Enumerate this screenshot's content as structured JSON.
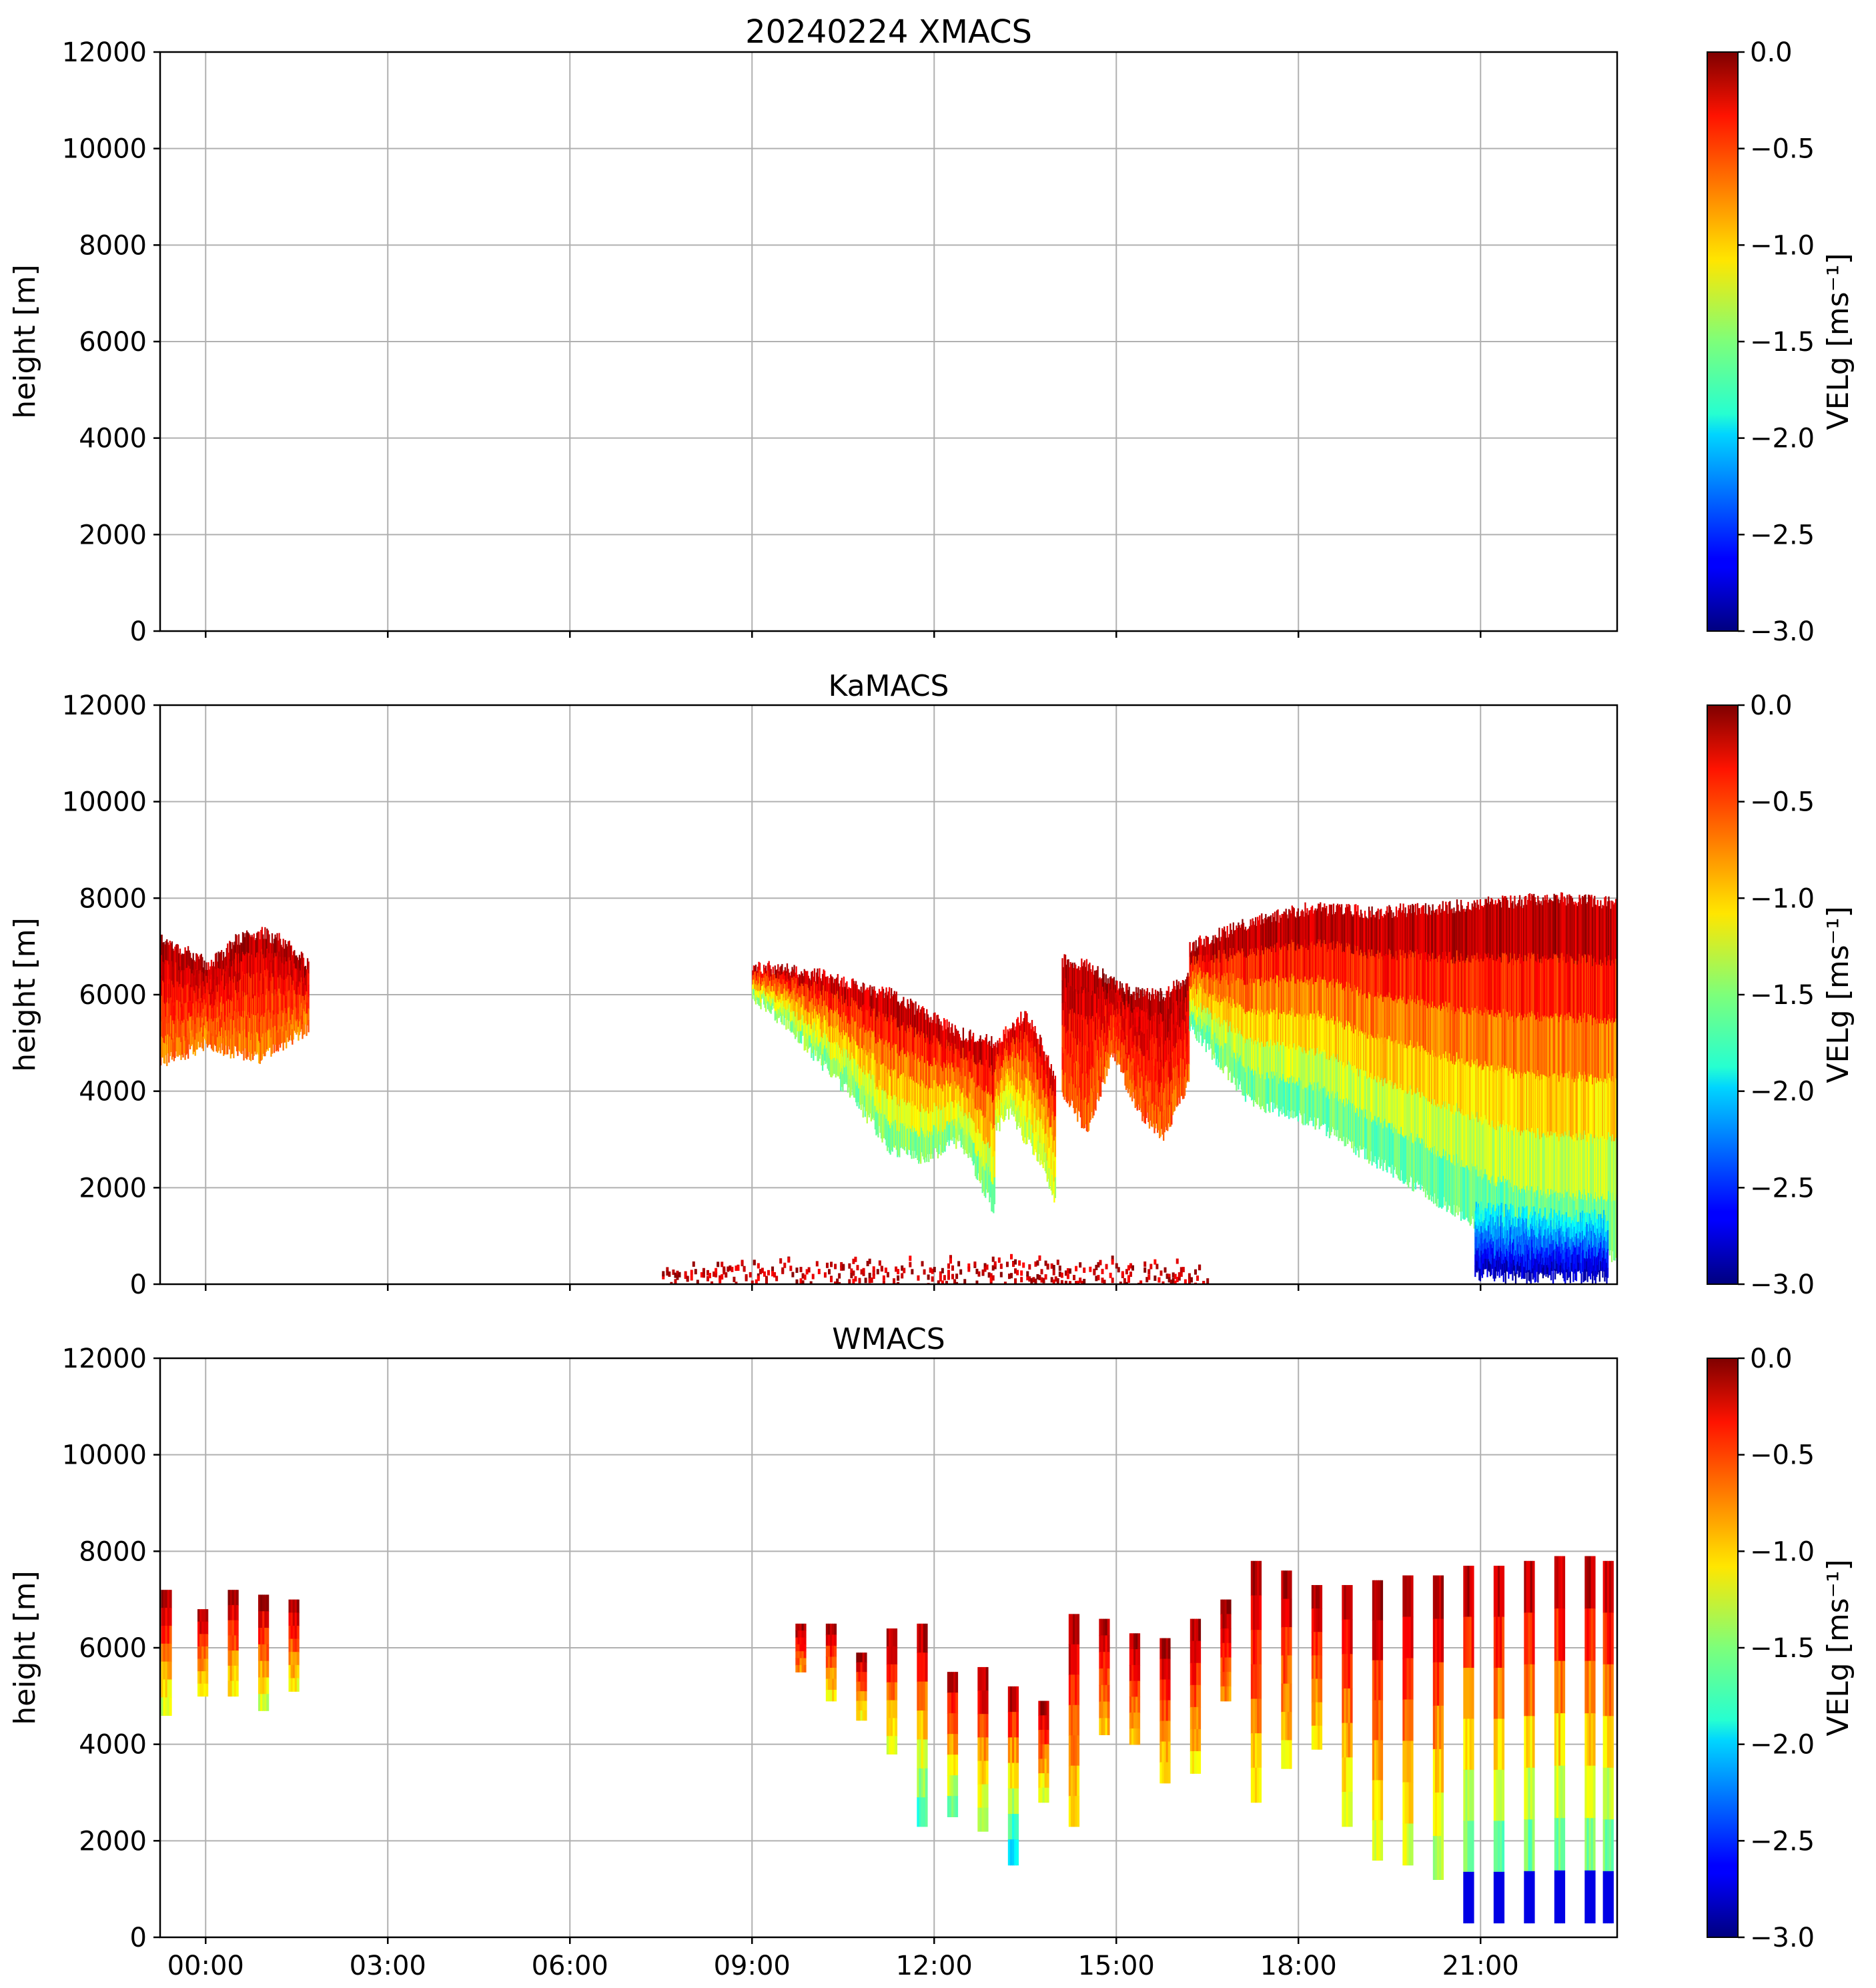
{
  "figure": {
    "suptitle": "20240224 XMACS"
  },
  "chart_data": [
    {
      "type": "heatmap",
      "title": "20240224 XMACS",
      "ylabel": "height [m]",
      "colorbar_label": "VELg [ms⁻¹]",
      "clim": [
        -3.0,
        0.0
      ],
      "colorbar_ticks": [
        "0.0",
        "−0.5",
        "−1.0",
        "−1.5",
        "−2.0",
        "−2.5",
        "−3.0"
      ],
      "ylim": [
        0,
        12000
      ],
      "yticks": [
        "12000",
        "10000",
        "8000",
        "6000",
        "4000",
        "2000",
        "0"
      ],
      "x_range_hours": [
        -0.75,
        23.25
      ],
      "xticks": [
        "00:00",
        "03:00",
        "06:00",
        "09:00",
        "12:00",
        "15:00",
        "18:00",
        "21:00"
      ],
      "show_xtick_labels": false,
      "grid": true,
      "colormap": "jet",
      "echo_regions": []
    },
    {
      "type": "heatmap",
      "title": "KaMACS",
      "ylabel": "height [m]",
      "colorbar_label": "VELg [ms⁻¹]",
      "clim": [
        -3.0,
        0.0
      ],
      "colorbar_ticks": [
        "0.0",
        "−0.5",
        "−1.0",
        "−1.5",
        "−2.0",
        "−2.5",
        "−3.0"
      ],
      "ylim": [
        0,
        12000
      ],
      "yticks": [
        "12000",
        "10000",
        "8000",
        "6000",
        "4000",
        "2000",
        "0"
      ],
      "x_range_hours": [
        -0.75,
        23.25
      ],
      "xticks": [
        "00:00",
        "03:00",
        "06:00",
        "09:00",
        "12:00",
        "15:00",
        "18:00",
        "21:00"
      ],
      "show_xtick_labels": false,
      "grid": true,
      "colormap": "jet",
      "echo_regions": [
        {
          "t0": -0.75,
          "t1": 1.7,
          "top": [
            7200,
            6900,
            6600,
            7100,
            7300,
            7100,
            6600
          ],
          "bottom": [
            4600,
            4800,
            5000,
            4800,
            4700,
            5000,
            5300
          ],
          "v_top": -0.1,
          "v_bottom": -0.8
        },
        {
          "t0": 9.0,
          "t1": 13.0,
          "top": [
            6600,
            6500,
            6400,
            6200,
            6000,
            5600,
            5200,
            5000
          ],
          "bottom": [
            6000,
            5400,
            4600,
            3800,
            2800,
            2600,
            3000,
            1500
          ],
          "v_top": -0.1,
          "v_bottom": -1.6
        },
        {
          "t0": 13.0,
          "t1": 14.0,
          "top": [
            5000,
            5300,
            5600,
            5000,
            4200
          ],
          "bottom": [
            3200,
            3600,
            3000,
            2600,
            1700
          ],
          "v_top": -0.2,
          "v_bottom": -1.4
        },
        {
          "t0": 14.1,
          "t1": 16.2,
          "top": [
            6700,
            6600,
            6300,
            6000,
            6000,
            6400
          ],
          "bottom": [
            4000,
            3200,
            4800,
            3600,
            3100,
            4200
          ],
          "v_top": -0.1,
          "v_bottom": -0.7
        },
        {
          "t0": 16.2,
          "t1": 23.25,
          "top": [
            7000,
            7500,
            7800,
            7700,
            7800,
            7900,
            8000,
            7900
          ],
          "bottom": [
            5400,
            3800,
            3400,
            2600,
            1800,
            1000,
            600,
            600
          ],
          "v_top": -0.05,
          "v_bottom": -1.7
        },
        {
          "t0": 20.9,
          "t1": 23.1,
          "top": [
            1600,
            1500,
            1400,
            1400
          ],
          "bottom": [
            200,
            150,
            150,
            150
          ],
          "v_top": -1.8,
          "v_bottom": -2.9
        },
        {
          "t0": 7.5,
          "t1": 16.5,
          "top": [
            400,
            500,
            600,
            500,
            400
          ],
          "bottom": [
            0,
            0,
            0,
            0,
            0
          ],
          "v_top": -0.2,
          "v_bottom": -0.6,
          "sparse": true
        }
      ]
    },
    {
      "type": "heatmap",
      "title": "WMACS",
      "ylabel": "height [m]",
      "colorbar_label": "VELg [ms⁻¹]",
      "clim": [
        -3.0,
        0.0
      ],
      "colorbar_ticks": [
        "0.0",
        "−0.5",
        "−1.0",
        "−1.5",
        "−2.0",
        "−2.5",
        "−3.0"
      ],
      "ylim": [
        0,
        12000
      ],
      "yticks": [
        "12000",
        "10000",
        "8000",
        "6000",
        "4000",
        "2000",
        "0"
      ],
      "x_range_hours": [
        -0.75,
        23.25
      ],
      "xticks": [
        "00:00",
        "03:00",
        "06:00",
        "09:00",
        "12:00",
        "15:00",
        "18:00",
        "21:00"
      ],
      "show_xtick_labels": true,
      "grid": true,
      "colormap": "jet",
      "echo_strips": [
        {
          "t": -0.65,
          "top": 7200,
          "bottom": 4600,
          "v": -0.6
        },
        {
          "t": -0.05,
          "top": 6800,
          "bottom": 5000,
          "v": -0.5
        },
        {
          "t": 0.45,
          "top": 7200,
          "bottom": 5000,
          "v": -0.5
        },
        {
          "t": 0.95,
          "top": 7100,
          "bottom": 4700,
          "v": -0.6
        },
        {
          "t": 1.45,
          "top": 7000,
          "bottom": 5100,
          "v": -0.5
        },
        {
          "t": 9.8,
          "top": 6500,
          "bottom": 5500,
          "v": -0.3
        },
        {
          "t": 10.3,
          "top": 6500,
          "bottom": 4900,
          "v": -0.5
        },
        {
          "t": 10.8,
          "top": 5900,
          "bottom": 4500,
          "v": -0.5
        },
        {
          "t": 11.3,
          "top": 6400,
          "bottom": 3800,
          "v": -0.6
        },
        {
          "t": 11.8,
          "top": 6500,
          "bottom": 2300,
          "v": -0.9
        },
        {
          "t": 12.3,
          "top": 5500,
          "bottom": 2500,
          "v": -0.8
        },
        {
          "t": 12.8,
          "top": 5600,
          "bottom": 2200,
          "v": -0.7
        },
        {
          "t": 13.3,
          "top": 5200,
          "bottom": 1500,
          "v": -1.1
        },
        {
          "t": 13.8,
          "top": 4900,
          "bottom": 2800,
          "v": -0.6
        },
        {
          "t": 14.3,
          "top": 6700,
          "bottom": 2300,
          "v": -0.5
        },
        {
          "t": 14.8,
          "top": 6600,
          "bottom": 4200,
          "v": -0.4
        },
        {
          "t": 15.3,
          "top": 6300,
          "bottom": 4000,
          "v": -0.4
        },
        {
          "t": 15.8,
          "top": 6200,
          "bottom": 3200,
          "v": -0.5
        },
        {
          "t": 16.3,
          "top": 6600,
          "bottom": 3400,
          "v": -0.5
        },
        {
          "t": 16.8,
          "top": 7000,
          "bottom": 4900,
          "v": -0.3
        },
        {
          "t": 17.3,
          "top": 7800,
          "bottom": 2800,
          "v": -0.5
        },
        {
          "t": 17.8,
          "top": 7600,
          "bottom": 3500,
          "v": -0.5
        },
        {
          "t": 18.3,
          "top": 7300,
          "bottom": 3900,
          "v": -0.5
        },
        {
          "t": 18.8,
          "top": 7300,
          "bottom": 2300,
          "v": -0.6
        },
        {
          "t": 19.3,
          "top": 7400,
          "bottom": 1600,
          "v": -0.6
        },
        {
          "t": 19.8,
          "top": 7500,
          "bottom": 1500,
          "v": -0.6
        },
        {
          "t": 20.3,
          "top": 7500,
          "bottom": 1200,
          "v": -0.7
        },
        {
          "t": 20.8,
          "top": 7700,
          "bottom": 300,
          "v": -1.0
        },
        {
          "t": 21.3,
          "top": 7700,
          "bottom": 300,
          "v": -1.0
        },
        {
          "t": 21.8,
          "top": 7800,
          "bottom": 300,
          "v": -1.0
        },
        {
          "t": 22.3,
          "top": 7900,
          "bottom": 300,
          "v": -1.0
        },
        {
          "t": 22.8,
          "top": 7900,
          "bottom": 300,
          "v": -1.0
        },
        {
          "t": 23.1,
          "top": 7800,
          "bottom": 300,
          "v": -1.0
        }
      ]
    }
  ]
}
